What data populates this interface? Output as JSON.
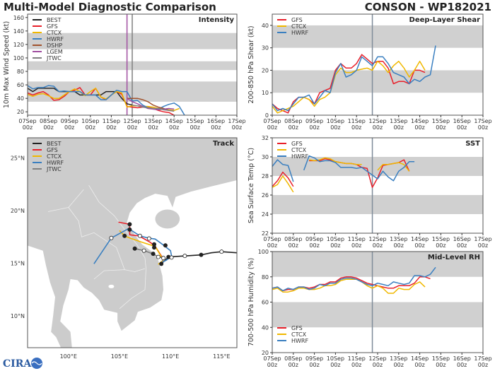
{
  "header": {
    "title": "Multi-Model Diagnostic Comparison",
    "storm": "CONSON - WP182021"
  },
  "colors": {
    "BEST": "#222222",
    "GFS": "#e8202a",
    "CTCX": "#f0b800",
    "HWRF": "#3a7fc0",
    "DSHP": "#a0522d",
    "LGEM": "#a04ea0",
    "JTWC": "#808080",
    "band": "#d0d0d0",
    "land": "#cccccc"
  },
  "x_ticks": [
    [
      "07Sep",
      "00z"
    ],
    [
      "08Sep",
      "00z"
    ],
    [
      "09Sep",
      "00z"
    ],
    [
      "10Sep",
      "00z"
    ],
    [
      "11Sep",
      "00z"
    ],
    [
      "12Sep",
      "00z"
    ],
    [
      "13Sep",
      "00z"
    ],
    [
      "14Sep",
      "00z"
    ],
    [
      "15Sep",
      "00z"
    ],
    [
      "16Sep",
      "00z"
    ],
    [
      "17Sep",
      "00z"
    ]
  ],
  "logo": "CIRA",
  "chart_data": [
    {
      "id": "intensity",
      "type": "line",
      "title": "Intensity",
      "ylabel": "10m Max Wind Speed (kt)",
      "xlim": [
        "07Sep00z",
        "17Sep00z"
      ],
      "ylim": [
        15,
        165
      ],
      "yticks": [
        20,
        40,
        60,
        80,
        100,
        120,
        140,
        160
      ],
      "bands": [
        [
          35,
          65
        ],
        [
          82,
          95
        ],
        [
          113,
          137
        ]
      ],
      "legend": "top-left",
      "vlines": [
        {
          "time": "11Sep18z",
          "color": "#a04ea0"
        },
        {
          "time": "12Sep00z",
          "color": "#808080"
        }
      ],
      "interval_hours": 6,
      "series": [
        {
          "name": "BEST",
          "start": "07Sep00z",
          "values": [
            55,
            50,
            55,
            55,
            55,
            55,
            50,
            50,
            50,
            50,
            45,
            45,
            45,
            45,
            45,
            50,
            50,
            50,
            40,
            32,
            30
          ]
        },
        {
          "name": "GFS",
          "start": "07Sep00z",
          "values": [
            48,
            45,
            48,
            50,
            45,
            37,
            38,
            43,
            50,
            52,
            56,
            45,
            45,
            55,
            42,
            38,
            45,
            50,
            46,
            28,
            27,
            26,
            27,
            27,
            25,
            22,
            20,
            19,
            15
          ]
        },
        {
          "name": "CTCX",
          "start": "07Sep00z",
          "values": [
            46,
            43,
            46,
            47,
            44,
            40,
            40,
            45,
            50,
            54,
            50,
            44,
            50,
            55,
            42,
            39,
            45,
            50,
            48,
            27,
            29,
            29,
            28,
            28,
            27,
            25,
            24,
            23,
            22,
            25
          ]
        },
        {
          "name": "HWRF",
          "start": "07Sep00z",
          "values": [
            59,
            54,
            56,
            56,
            59,
            58,
            50,
            51,
            50,
            50,
            50,
            45,
            45,
            45,
            38,
            38,
            45,
            52,
            50,
            50,
            36,
            37,
            30,
            26,
            24,
            24,
            28,
            31,
            33,
            28,
            15
          ]
        },
        {
          "name": "DSHP",
          "start": "11Sep18z",
          "values": [
            40,
            40,
            40,
            38,
            35,
            30,
            27,
            25,
            22,
            21
          ]
        },
        {
          "name": "LGEM",
          "start": "11Sep18z",
          "values": [
            40,
            35,
            32,
            28,
            25,
            24,
            23,
            24,
            25,
            24
          ]
        },
        {
          "name": "JTWC",
          "start": "12Sep00z",
          "values": [
            30,
            29,
            27,
            26,
            25,
            25,
            23,
            22,
            21
          ]
        }
      ]
    },
    {
      "id": "shear",
      "type": "line",
      "title": "Deep-Layer Shear",
      "ylabel": "200-850 hPa Shear (kt)",
      "xlim": [
        "07Sep00z",
        "17Sep00z"
      ],
      "ylim": [
        0,
        45
      ],
      "yticks": [
        0,
        10,
        20,
        30,
        40
      ],
      "bands": [
        [
          10,
          20
        ],
        [
          30,
          40
        ]
      ],
      "legend": "top-left",
      "vlines": [
        {
          "time": "11Sep18z",
          "color": "#7f8c9a"
        }
      ],
      "interval_hours": 6,
      "series": [
        {
          "name": "GFS",
          "start": "07Sep00z",
          "values": [
            5,
            3,
            2,
            1,
            6,
            8,
            8,
            7,
            5,
            10,
            11,
            12,
            20,
            23,
            21,
            21,
            23,
            27,
            25,
            23,
            24,
            24,
            21,
            14,
            15,
            15,
            14,
            20,
            20,
            19
          ]
        },
        {
          "name": "CTCX",
          "start": "07Sep00z",
          "values": [
            4,
            1,
            2,
            3,
            4,
            6,
            8,
            7,
            4,
            7,
            8,
            10,
            18,
            21,
            19,
            19,
            20,
            20.5,
            21,
            20,
            24,
            22,
            19,
            22,
            24,
            21,
            17,
            20,
            24,
            20
          ]
        },
        {
          "name": "HWRF",
          "start": "07Sep00z",
          "values": [
            5,
            2,
            3,
            2,
            5,
            8,
            8,
            9,
            5,
            8,
            11,
            10,
            19,
            23,
            17,
            18,
            20,
            26,
            24,
            22,
            26,
            26,
            23,
            19,
            18,
            17,
            14,
            16,
            15,
            17,
            18,
            31
          ]
        }
      ]
    },
    {
      "id": "sst",
      "type": "line",
      "title": "SST",
      "ylabel": "Sea Surface Temp (°C)",
      "xlim": [
        "07Sep00z",
        "17Sep00z"
      ],
      "ylim": [
        22,
        32
      ],
      "yticks": [
        22,
        24,
        26,
        28,
        30,
        32
      ],
      "bands": [
        [
          24,
          26
        ],
        [
          28,
          30
        ],
        [
          32,
          34
        ]
      ],
      "legend": "top-left",
      "vlines": [
        {
          "time": "11Sep18z",
          "color": "#7f8c9a"
        }
      ],
      "interval_hours": 6,
      "series": [
        {
          "name": "GFS",
          "start": "07Sep00z",
          "values": [
            26.9,
            27.5,
            28.4,
            27.8,
            26.9,
            null,
            null,
            29.6,
            29.6,
            29.6,
            29.8,
            29.7,
            29.5,
            29.4,
            29.3,
            29.3,
            29.2,
            28.9,
            28.8,
            26.8,
            27.8,
            29.1,
            29.2,
            29.3,
            29.4,
            29.7,
            28.5
          ]
        },
        {
          "name": "CTCX",
          "start": "07Sep00z",
          "values": [
            26.8,
            27.1,
            28.0,
            27.2,
            26.3,
            null,
            null,
            29.7,
            29.6,
            29.7,
            29.9,
            29.8,
            29.5,
            29.4,
            29.3,
            29.3,
            29.2,
            29.2,
            null,
            null,
            28.6,
            29.2,
            29.2,
            29.3,
            29.4,
            29.2,
            28.5
          ]
        },
        {
          "name": "HWRF",
          "start": "07Sep00z",
          "values": [
            29.0,
            29.7,
            29.2,
            29.1,
            27.4,
            null,
            28.6,
            30.1,
            29.9,
            29.5,
            29.6,
            29.6,
            29.4,
            28.9,
            28.9,
            28.9,
            28.8,
            28.9,
            28.5,
            28.1,
            27.7,
            28.5,
            27.9,
            27.5,
            28.5,
            28.9,
            29.5,
            29.5
          ]
        }
      ]
    },
    {
      "id": "rh",
      "type": "line",
      "title": "Mid-Level RH",
      "ylabel": "700-500 hPa Humidity (%)",
      "xlim": [
        "07Sep00z",
        "17Sep00z"
      ],
      "ylim": [
        20,
        100
      ],
      "yticks": [
        20,
        40,
        60,
        80,
        100
      ],
      "bands": [
        [
          40,
          60
        ],
        [
          80,
          100
        ]
      ],
      "legend": "bottom-left",
      "vlines": [
        {
          "time": "11Sep18z",
          "color": "#7f8c9a"
        }
      ],
      "interval_hours": 6,
      "series": [
        {
          "name": "GFS",
          "start": "07Sep00z",
          "values": [
            71,
            72,
            69,
            70,
            70,
            72,
            72,
            71,
            72,
            74,
            74,
            76,
            76,
            79,
            80,
            80,
            79,
            77,
            75,
            74,
            73,
            72,
            71,
            71,
            73,
            73,
            73,
            75,
            80,
            80,
            78.5
          ]
        },
        {
          "name": "CTCX",
          "start": "07Sep00z",
          "values": [
            70,
            71,
            68,
            68,
            69,
            71,
            71,
            70,
            70,
            71,
            73,
            73,
            74,
            77,
            78,
            78,
            78,
            76,
            73,
            71,
            73,
            71,
            67,
            67,
            71,
            70,
            70,
            74,
            76,
            72
          ]
        },
        {
          "name": "HWRF",
          "start": "07Sep00z",
          "values": [
            71,
            72,
            69,
            71,
            70,
            72,
            72,
            70,
            71,
            74,
            73,
            75,
            75,
            78,
            79,
            79,
            78,
            76,
            74,
            73,
            75,
            74,
            73,
            76,
            75,
            74,
            75,
            81,
            81,
            80,
            82,
            87.5
          ]
        }
      ]
    },
    {
      "id": "track",
      "type": "map",
      "title": "Track",
      "lon_range": [
        96,
        116.5
      ],
      "lat_range": [
        7,
        26.9
      ],
      "lon_ticks": [
        [
          100,
          "100°E"
        ],
        [
          105,
          "105°E"
        ],
        [
          110,
          "110°E"
        ],
        [
          115,
          "115°E"
        ]
      ],
      "lat_ticks": [
        [
          10,
          "10°N"
        ],
        [
          15,
          "15°N"
        ],
        [
          20,
          "20°N"
        ],
        [
          25,
          "25°N"
        ]
      ],
      "legend": "top-left",
      "tracks": [
        {
          "name": "BEST",
          "points": [
            [
              116.5,
              16.0
            ],
            [
              115.0,
              16.1
            ],
            [
              114.0,
              16.0
            ],
            [
              113.0,
              15.8
            ],
            [
              112.2,
              15.75
            ],
            [
              111.4,
              15.7
            ],
            [
              110.5,
              15.65
            ],
            [
              109.8,
              15.6
            ],
            [
              109.1,
              14.95
            ]
          ],
          "markers": [
            {
              "lon": 115.0,
              "lat": 16.1,
              "filled": false
            },
            {
              "lon": 113.0,
              "lat": 15.8,
              "filled": true
            },
            {
              "lon": 111.4,
              "lat": 15.7,
              "filled": false
            },
            {
              "lon": 109.8,
              "lat": 15.6,
              "filled": true
            },
            {
              "lon": 109.1,
              "lat": 14.95,
              "filled": true
            }
          ]
        },
        {
          "name": "GFS",
          "points": [
            [
              109.1,
              15.0
            ],
            [
              109.3,
              15.4
            ],
            [
              108.5,
              16.6
            ],
            [
              108.0,
              17.0
            ],
            [
              106.9,
              17.6
            ],
            [
              106.0,
              17.7
            ],
            [
              106.0,
              18.2
            ],
            [
              106.0,
              18.7
            ],
            [
              104.9,
              18.9
            ]
          ],
          "markers": [
            {
              "lon": 106.0,
              "lat": 18.7,
              "filled": true
            },
            {
              "lon": 106.0,
              "lat": 18.2,
              "filled": true
            },
            {
              "lon": 108.4,
              "lat": 16.8,
              "filled": true
            }
          ]
        },
        {
          "name": "CTCX",
          "points": [
            [
              108.8,
              14.9
            ],
            [
              109.3,
              15.3
            ],
            [
              108.5,
              16.6
            ],
            [
              107.2,
              17.0
            ],
            [
              106.0,
              17.4
            ],
            [
              105.5,
              17.6
            ],
            [
              105.0,
              18.1
            ]
          ],
          "markers": [
            {
              "lon": 105.5,
              "lat": 17.6,
              "filled": true
            },
            {
              "lon": 108.4,
              "lat": 16.5,
              "filled": true
            }
          ]
        },
        {
          "name": "HWRF",
          "points": [
            [
              109.0,
              15.0
            ],
            [
              109.6,
              15.3
            ],
            [
              110.1,
              15.7
            ],
            [
              110.0,
              16.2
            ],
            [
              109.2,
              16.8
            ],
            [
              108.5,
              17.3
            ],
            [
              107.8,
              17.4
            ],
            [
              107.0,
              17.6
            ],
            [
              105.9,
              18.3
            ],
            [
              104.2,
              17.4
            ],
            [
              102.5,
              14.95
            ]
          ],
          "markers": [
            {
              "lon": 104.2,
              "lat": 17.4,
              "filled": false
            },
            {
              "lon": 107.0,
              "lat": 17.6,
              "filled": false
            },
            {
              "lon": 107.9,
              "lat": 17.35,
              "filled": false
            },
            {
              "lon": 109.5,
              "lat": 16.7,
              "filled": true
            },
            {
              "lon": 110.1,
              "lat": 15.55,
              "filled": false
            }
          ]
        },
        {
          "name": "JTWC",
          "points": [
            [
              109.2,
              15.1
            ],
            [
              109.3,
              15.5
            ],
            [
              108.8,
              15.6
            ],
            [
              108.3,
              15.9
            ],
            [
              107.4,
              16.2
            ],
            [
              106.5,
              16.4
            ]
          ],
          "markers": [
            {
              "lon": 106.5,
              "lat": 16.4,
              "filled": true
            },
            {
              "lon": 107.4,
              "lat": 16.2,
              "filled": false
            },
            {
              "lon": 108.3,
              "lat": 15.9,
              "filled": true
            },
            {
              "lon": 108.8,
              "lat": 15.6,
              "filled": false
            },
            {
              "lon": 109.3,
              "lat": 15.5,
              "filled": false
            }
          ]
        }
      ]
    }
  ]
}
